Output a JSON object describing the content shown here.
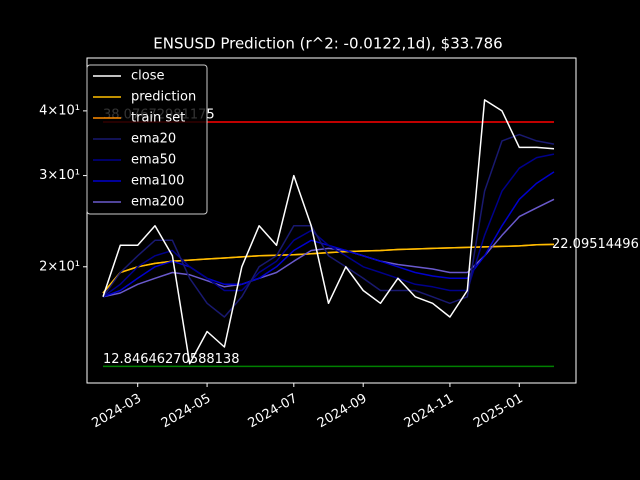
{
  "chart_data": {
    "type": "line",
    "title": "ENSUSD Prediction (r^2: -0.0122,1d), $33.786",
    "categories": [
      null,
      null,
      "2024-03",
      null,
      null,
      null,
      "2024-05",
      null,
      null,
      null,
      null,
      "2024-07",
      null,
      null,
      null,
      "2024-09",
      null,
      null,
      null,
      null,
      "2024-11",
      null,
      null,
      null,
      "2025-01",
      null,
      null
    ],
    "log_scale": true,
    "ylim": [
      11.93,
      50.6
    ],
    "yticks": [
      {
        "value": 20,
        "label": "2×10¹"
      },
      {
        "value": 30,
        "label": "3×10¹"
      },
      {
        "value": 40,
        "label": "4×10¹"
      }
    ],
    "legend": "upper left",
    "series": [
      {
        "name": "close",
        "color": "#ffffff",
        "values": [
          17.5,
          22,
          22,
          24,
          21,
          13,
          15,
          14,
          20,
          24,
          22,
          30,
          24,
          17,
          20,
          18,
          17,
          19,
          17.5,
          17,
          16,
          18,
          42,
          40,
          34,
          34,
          33.8
        ]
      },
      {
        "name": "prediction",
        "color": "#ffbf00",
        "values": [
          17.8,
          19.5,
          20,
          20.3,
          20.5,
          20.6,
          20.7,
          20.8,
          20.9,
          21,
          21.05,
          21.1,
          21.2,
          21.3,
          21.4,
          21.45,
          21.5,
          21.6,
          21.65,
          21.7,
          21.75,
          21.8,
          21.85,
          21.9,
          21.95,
          22.05,
          22.09514496
        ]
      },
      {
        "name": "train set",
        "color": "#ff8c00",
        "values": [
          17.8,
          19.5,
          20,
          20.3,
          20.5,
          20.6,
          20.7,
          20.8,
          20.9,
          21,
          21.05,
          21.1,
          21.2,
          21.3,
          21.4,
          21.45,
          21.5,
          21.6,
          21.65,
          21.7,
          21.75,
          21.8,
          21.85,
          21.9,
          21.95,
          22.05,
          22.09514496
        ]
      },
      {
        "name": "ema20",
        "color": "#191970",
        "values": [
          17.5,
          19.5,
          21,
          22.5,
          22.5,
          19,
          17,
          16,
          17.5,
          20,
          21,
          24,
          24,
          21,
          20,
          19,
          18,
          18,
          18,
          17.5,
          17,
          17.5,
          28,
          35,
          36,
          35,
          34.5
        ]
      },
      {
        "name": "ema50",
        "color": "#00008b",
        "values": [
          17.5,
          18.5,
          20,
          21,
          21.5,
          20,
          19,
          18,
          18,
          19.5,
          20.5,
          22.5,
          23.5,
          22,
          21,
          20,
          19.5,
          19,
          18.5,
          18.3,
          18,
          18,
          23,
          28,
          31,
          32.5,
          33
        ]
      },
      {
        "name": "ema100",
        "color": "#0000cd",
        "values": [
          17.5,
          18,
          19,
          20,
          20.5,
          20,
          19,
          18.5,
          18.5,
          19,
          20,
          21.5,
          22.5,
          22,
          21.5,
          21,
          20.5,
          20,
          19.5,
          19.2,
          19,
          19,
          21,
          24,
          27,
          29,
          30.5
        ]
      },
      {
        "name": "ema200",
        "color": "#6a5acd",
        "values": [
          17.5,
          17.8,
          18.5,
          19,
          19.5,
          19.3,
          18.8,
          18.3,
          18.5,
          19,
          19.5,
          20.5,
          21.5,
          21.7,
          21.5,
          21,
          20.5,
          20.2,
          20,
          19.8,
          19.5,
          19.5,
          21,
          23,
          25,
          26,
          27
        ]
      }
    ],
    "hlines": [
      {
        "value": 38.07672981175,
        "label": "38.07672981175",
        "color": "#ff0000"
      },
      {
        "value": 12.84646270588138,
        "label": "12.84646270588138",
        "color": "#008000"
      }
    ],
    "end_label": "22.09514496"
  }
}
